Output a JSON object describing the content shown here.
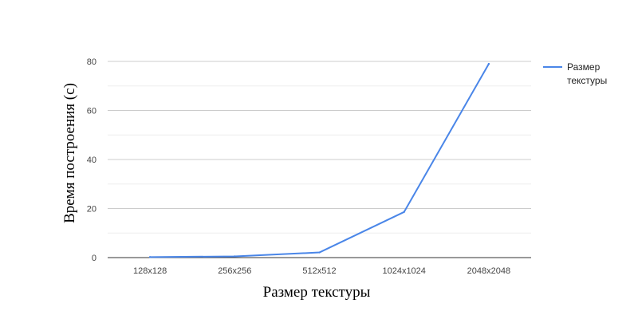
{
  "chart_data": {
    "type": "line",
    "title": "",
    "categories": [
      "128x128",
      "256x256",
      "512x512",
      "1024x1024",
      "2048x2048"
    ],
    "series": [
      {
        "name": "Размер текстуры",
        "legend_lines": [
          "Размер",
          "текстуры"
        ],
        "values": [
          0.2,
          0.5,
          2.1,
          18.6,
          79.0
        ],
        "color": "#4a86e8"
      }
    ],
    "xlabel": "Размер текстуры",
    "ylabel": "Время построения (с)",
    "ylim": [
      0,
      80
    ],
    "y_ticks": [
      "0",
      "20",
      "40",
      "60",
      "80"
    ],
    "y_tick_values": [
      0,
      20,
      40,
      60,
      80
    ],
    "y_minor_ticks": [
      10,
      30,
      50,
      70
    ],
    "grid": true,
    "legend_position": "right",
    "colors": {
      "grid_major": "#cccccc",
      "grid_minor": "#eeeeee",
      "axis": "#333333"
    }
  }
}
